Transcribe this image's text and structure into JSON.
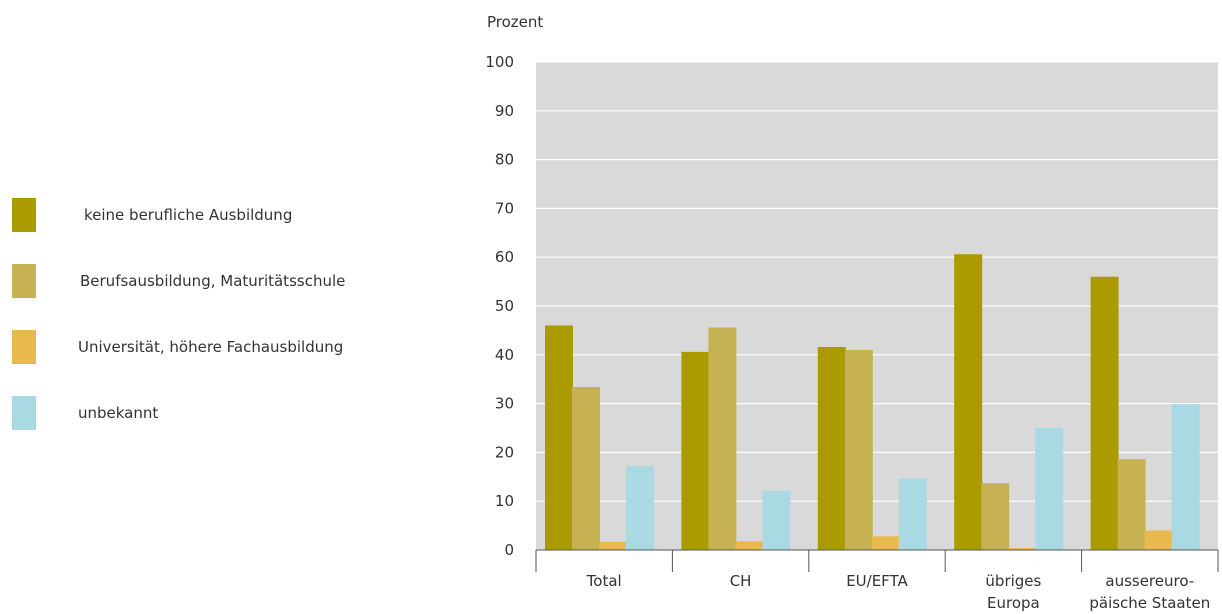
{
  "chart_data": {
    "type": "bar",
    "ylabel": "Prozent",
    "ylim": [
      0,
      100
    ],
    "yticks": [
      0,
      10,
      20,
      30,
      40,
      50,
      60,
      70,
      80,
      90,
      100
    ],
    "grid": true,
    "legend_position": "left",
    "categories": [
      [
        "Total"
      ],
      [
        "CH"
      ],
      [
        "EU/EFTA"
      ],
      [
        "übriges",
        "Europa"
      ],
      [
        "aussereuro-",
        "päische Staaten"
      ]
    ],
    "series": [
      {
        "name": "keine berufliche Ausbildung",
        "color": "#ab9a00",
        "values": [
          46,
          40.6,
          41.6,
          60.6,
          56
        ]
      },
      {
        "name": "Berufsausbildung, Maturitätsschule",
        "color": "#c6b253",
        "values": [
          33.4,
          45.6,
          41,
          13.7,
          18.6
        ]
      },
      {
        "name": "Universität, höhere Fachausbildung",
        "color": "#e9b94d",
        "values": [
          1.7,
          1.8,
          2.8,
          0.4,
          4
        ]
      },
      {
        "name": "unbekannt",
        "color": "#a9d9e2",
        "values": [
          17.2,
          12.1,
          14.6,
          25,
          29.9
        ]
      }
    ],
    "plot_background": "#d9d9d9"
  }
}
